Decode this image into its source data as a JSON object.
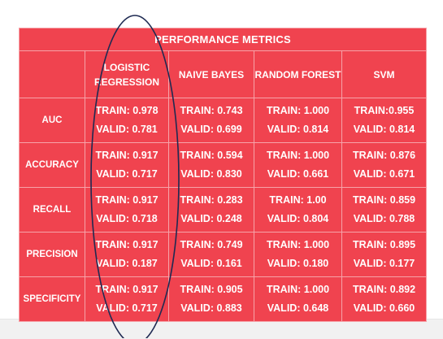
{
  "chart_data": {
    "type": "table",
    "title": "PERFORMANCE METRICS",
    "columns": [
      "LOGISTIC REGRESSION",
      "NAIVE BAYES",
      "RANDOM FOREST",
      "SVM"
    ],
    "rows": [
      {
        "metric": "AUC",
        "cells": [
          {
            "train": "TRAIN: 0.978",
            "valid": "VALID: 0.781"
          },
          {
            "train": "TRAIN: 0.743",
            "valid": "VALID: 0.699"
          },
          {
            "train": "TRAIN: 1.000",
            "valid": "VALID: 0.814"
          },
          {
            "train": "TRAIN:0.955",
            "valid": "VALID: 0.814"
          }
        ]
      },
      {
        "metric": "ACCURACY",
        "cells": [
          {
            "train": "TRAIN: 0.917",
            "valid": "VALID: 0.717"
          },
          {
            "train": "TRAIN: 0.594",
            "valid": "VALID: 0.830"
          },
          {
            "train": "TRAIN: 1.000",
            "valid": "VALID: 0.661"
          },
          {
            "train": "TRAIN: 0.876",
            "valid": "VALID: 0.671"
          }
        ]
      },
      {
        "metric": "RECALL",
        "cells": [
          {
            "train": "TRAIN: 0.917",
            "valid": "VALID: 0.718"
          },
          {
            "train": "TRAIN: 0.283",
            "valid": "VALID: 0.248"
          },
          {
            "train": "TRAIN: 1.00",
            "valid": "VALID: 0.804"
          },
          {
            "train": "TRAIN: 0.859",
            "valid": "VALID: 0.788"
          }
        ]
      },
      {
        "metric": "PRECISION",
        "cells": [
          {
            "train": "TRAIN: 0.917",
            "valid": "VALID: 0.187"
          },
          {
            "train": "TRAIN: 0.749",
            "valid": "VALID: 0.161"
          },
          {
            "train": "TRAIN: 1.000",
            "valid": "VALID: 0.180"
          },
          {
            "train": "TRAIN: 0.895",
            "valid": "VALID: 0.177"
          }
        ]
      },
      {
        "metric": "SPECIFICITY",
        "cells": [
          {
            "train": "TRAIN: 0.917",
            "valid": "VALID: 0.717"
          },
          {
            "train": "TRAIN: 0.905",
            "valid": "VALID: 0.883"
          },
          {
            "train": "TRAIN: 1.000",
            "valid": "VALID: 0.648"
          },
          {
            "train": "TRAIN: 0.892",
            "valid": "VALID: 0.660"
          }
        ]
      }
    ],
    "highlighted_column": "LOGISTIC REGRESSION"
  },
  "colors": {
    "table_background": "#f0434f",
    "grid_lines": "#f6a3a9",
    "text": "#ffffff",
    "highlight_ellipse": "#1f2a52"
  }
}
